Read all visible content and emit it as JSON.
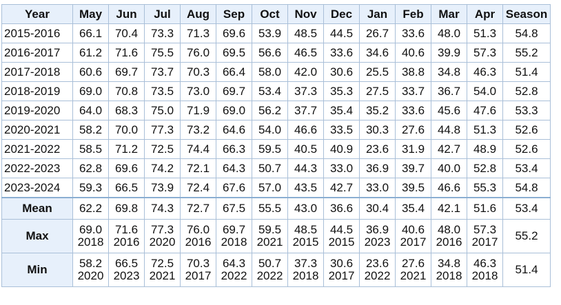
{
  "table": {
    "headers": [
      "Year",
      "May",
      "Jun",
      "Jul",
      "Aug",
      "Sep",
      "Oct",
      "Nov",
      "Dec",
      "Jan",
      "Feb",
      "Mar",
      "Apr",
      "Season"
    ],
    "rows": [
      {
        "year": "2015-2016",
        "values": [
          "66.1",
          "70.4",
          "73.3",
          "71.3",
          "69.6",
          "53.9",
          "48.5",
          "44.5",
          "26.7",
          "33.6",
          "48.0",
          "51.3"
        ],
        "season": "54.8"
      },
      {
        "year": "2016-2017",
        "values": [
          "61.2",
          "71.6",
          "75.5",
          "76.0",
          "69.5",
          "56.6",
          "46.5",
          "33.6",
          "34.6",
          "40.6",
          "39.9",
          "57.3"
        ],
        "season": "55.2"
      },
      {
        "year": "2017-2018",
        "values": [
          "60.6",
          "69.7",
          "73.7",
          "70.3",
          "66.4",
          "58.0",
          "42.0",
          "30.6",
          "25.5",
          "38.8",
          "34.8",
          "46.3"
        ],
        "season": "51.4"
      },
      {
        "year": "2018-2019",
        "values": [
          "69.0",
          "70.8",
          "73.5",
          "73.0",
          "69.7",
          "53.4",
          "37.3",
          "35.3",
          "27.5",
          "33.7",
          "36.7",
          "54.0"
        ],
        "season": "52.8"
      },
      {
        "year": "2019-2020",
        "values": [
          "64.0",
          "68.3",
          "75.0",
          "71.9",
          "69.0",
          "56.2",
          "37.7",
          "35.4",
          "35.2",
          "33.6",
          "45.6",
          "47.6"
        ],
        "season": "53.3"
      },
      {
        "year": "2020-2021",
        "values": [
          "58.2",
          "70.0",
          "77.3",
          "73.2",
          "64.6",
          "54.0",
          "46.6",
          "33.5",
          "30.3",
          "27.6",
          "44.8",
          "51.3"
        ],
        "season": "52.6"
      },
      {
        "year": "2021-2022",
        "values": [
          "58.5",
          "71.2",
          "72.5",
          "74.4",
          "66.3",
          "59.5",
          "40.5",
          "40.9",
          "23.6",
          "31.9",
          "42.7",
          "48.9"
        ],
        "season": "52.6"
      },
      {
        "year": "2022-2023",
        "values": [
          "62.8",
          "69.6",
          "74.2",
          "72.1",
          "64.3",
          "50.7",
          "44.3",
          "33.0",
          "36.9",
          "39.7",
          "40.0",
          "52.8"
        ],
        "season": "53.4"
      },
      {
        "year": "2023-2024",
        "values": [
          "59.3",
          "66.5",
          "73.9",
          "72.4",
          "67.6",
          "57.0",
          "43.5",
          "42.7",
          "33.0",
          "39.5",
          "46.6",
          "55.3"
        ],
        "season": "54.8"
      }
    ],
    "mean": {
      "label": "Mean",
      "values": [
        "62.2",
        "69.8",
        "74.3",
        "72.7",
        "67.5",
        "55.5",
        "43.0",
        "36.6",
        "30.4",
        "35.4",
        "42.1",
        "51.6"
      ],
      "season": "53.4"
    },
    "max": {
      "label": "Max",
      "values": [
        "69.0",
        "71.6",
        "77.3",
        "76.0",
        "69.7",
        "59.5",
        "48.5",
        "44.5",
        "36.9",
        "40.6",
        "48.0",
        "57.3"
      ],
      "years": [
        "2018",
        "2016",
        "2020",
        "2016",
        "2018",
        "2021",
        "2015",
        "2015",
        "2023",
        "2017",
        "2016",
        "2017"
      ],
      "season": "55.2"
    },
    "min": {
      "label": "Min",
      "values": [
        "58.2",
        "66.5",
        "72.5",
        "70.3",
        "64.3",
        "50.7",
        "37.3",
        "30.6",
        "23.6",
        "27.6",
        "34.8",
        "46.3"
      ],
      "years": [
        "2020",
        "2023",
        "2021",
        "2017",
        "2022",
        "2022",
        "2018",
        "2017",
        "2022",
        "2021",
        "2018",
        "2018"
      ],
      "season": "51.4"
    }
  }
}
